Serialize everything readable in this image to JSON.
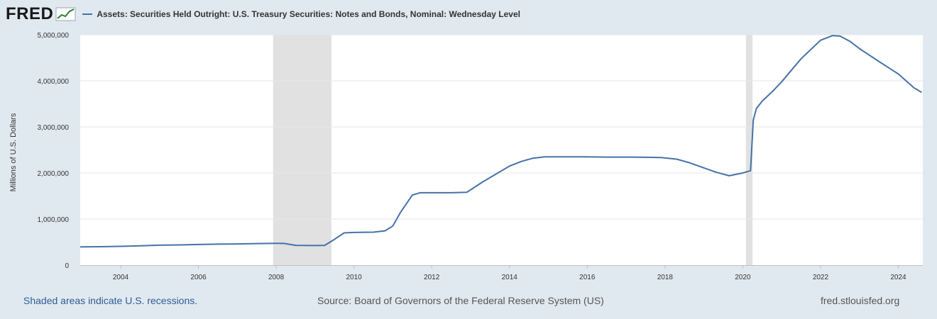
{
  "header": {
    "logo_text": "FRED",
    "series_title": "Assets: Securities Held Outright: U.S. Treasury Securities: Notes and Bonds, Nominal: Wednesday Level"
  },
  "footer": {
    "recession_note": "Shaded areas indicate U.S. recessions.",
    "source": "Source: Board of Governors of the Federal Reserve System (US)",
    "site": "fred.stlouisfed.org"
  },
  "colors": {
    "line": "#4572a7",
    "recession": "#e1e1e1",
    "plot_bg": "#ffffff",
    "page_bg": "#e1e9f0",
    "grid": "#e6e6e6"
  },
  "chart_data": {
    "type": "line",
    "title": "Assets: Securities Held Outright: U.S. Treasury Securities: Notes and Bonds, Nominal: Wednesday Level",
    "xlabel": "",
    "ylabel": "Millions of U.S. Dollars",
    "xlim": [
      2002.96,
      2024.63
    ],
    "ylim": [
      0,
      5000000
    ],
    "x_ticks": [
      2004,
      2006,
      2008,
      2010,
      2012,
      2014,
      2016,
      2018,
      2020,
      2022,
      2024
    ],
    "y_ticks": [
      0,
      1000000,
      2000000,
      3000000,
      4000000,
      5000000
    ],
    "y_tick_labels": [
      "0",
      "1,000,000",
      "2,000,000",
      "3,000,000",
      "4,000,000",
      "5,000,000"
    ],
    "recessions": [
      [
        2007.92,
        2009.42
      ],
      [
        2020.08,
        2020.25
      ]
    ],
    "series": [
      {
        "name": "Assets: Securities Held Outright: U.S. Treasury Securities: Notes and Bonds, Nominal: Wednesday Level",
        "x": [
          2002.96,
          2003.5,
          2004.0,
          2004.5,
          2005.0,
          2005.5,
          2006.0,
          2006.5,
          2007.0,
          2007.5,
          2008.0,
          2008.2,
          2008.5,
          2009.0,
          2009.25,
          2009.5,
          2009.75,
          2010.0,
          2010.5,
          2010.8,
          2011.0,
          2011.2,
          2011.5,
          2011.7,
          2012.0,
          2012.5,
          2012.9,
          2013.3,
          2013.7,
          2014.0,
          2014.3,
          2014.6,
          2014.9,
          2015.5,
          2016.0,
          2016.5,
          2017.0,
          2017.5,
          2017.9,
          2018.3,
          2018.6,
          2019.0,
          2019.3,
          2019.65,
          2020.0,
          2020.2,
          2020.27,
          2020.35,
          2020.5,
          2020.8,
          2021.0,
          2021.5,
          2022.0,
          2022.3,
          2022.5,
          2022.75,
          2023.0,
          2023.5,
          2024.0,
          2024.4,
          2024.6
        ],
        "y": [
          395000,
          400000,
          408000,
          418000,
          432000,
          438000,
          447000,
          455000,
          460000,
          468000,
          473000,
          470000,
          430000,
          425000,
          430000,
          560000,
          700000,
          710000,
          715000,
          745000,
          850000,
          1150000,
          1520000,
          1570000,
          1570000,
          1570000,
          1580000,
          1800000,
          2000000,
          2150000,
          2250000,
          2320000,
          2350000,
          2350000,
          2350000,
          2345000,
          2345000,
          2340000,
          2335000,
          2300000,
          2230000,
          2110000,
          2020000,
          1940000,
          2000000,
          2050000,
          3150000,
          3400000,
          3560000,
          3800000,
          3980000,
          4480000,
          4880000,
          4980000,
          4970000,
          4860000,
          4700000,
          4420000,
          4150000,
          3850000,
          3750000
        ]
      }
    ]
  }
}
